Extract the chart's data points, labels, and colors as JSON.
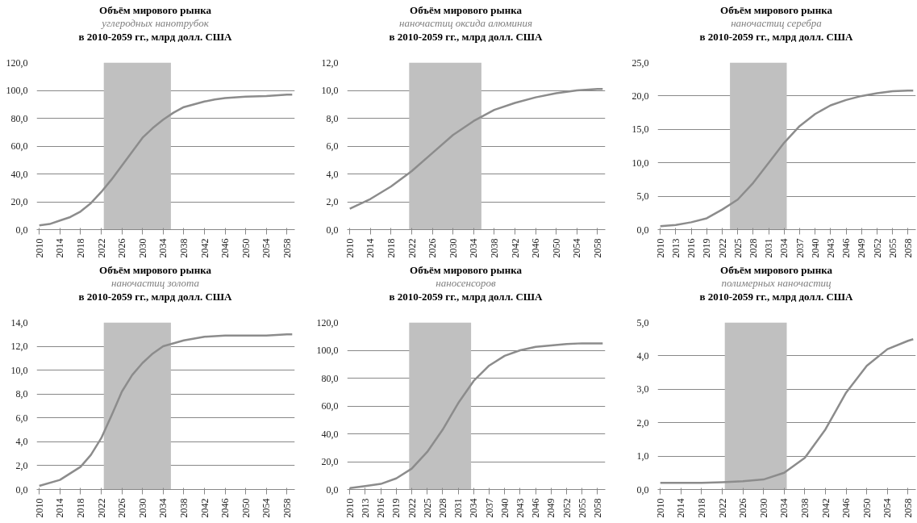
{
  "chart_data": [
    {
      "type": "line",
      "title": "Объём мирового рынка",
      "subtitle": "углеродных нанотрубок",
      "annotations": [
        "в 2010-2059 гг., млрд долл. США"
      ],
      "grid": "y",
      "xlim": [
        2009.5,
        2059.5
      ],
      "xticks": [
        2010,
        2014,
        2018,
        2022,
        2026,
        2030,
        2034,
        2038,
        2042,
        2046,
        2050,
        2054,
        2058
      ],
      "ylim": [
        0,
        120
      ],
      "yticks": [
        {
          "value": 0,
          "label": "0,0"
        },
        {
          "value": 20,
          "label": "20,0"
        },
        {
          "value": 40,
          "label": "40,0"
        },
        {
          "value": 60,
          "label": "60,0"
        },
        {
          "value": 80,
          "label": "80,0"
        },
        {
          "value": 100,
          "label": "100,0"
        },
        {
          "value": 120,
          "label": "120,0"
        }
      ],
      "bands": [
        {
          "axis": "x",
          "from": 2022.5,
          "to": 2035.5,
          "color": "#c0c0c0"
        }
      ],
      "series": [
        {
          "color": "#8c8c8c",
          "x": [
            2010,
            2012,
            2014,
            2016,
            2018,
            2020,
            2022,
            2024,
            2026,
            2028,
            2030,
            2032,
            2034,
            2036,
            2038,
            2040,
            2042,
            2044,
            2046,
            2050,
            2054,
            2058,
            2059
          ],
          "values": [
            3,
            4,
            6.5,
            9,
            13,
            19,
            27,
            36,
            46,
            56,
            66,
            73,
            79,
            84,
            88,
            90,
            92,
            93.5,
            94.5,
            95.5,
            96,
            97,
            97
          ]
        }
      ]
    },
    {
      "type": "line",
      "title": "Объём мирового рынка",
      "subtitle": "наночастиц оксида алюминия",
      "annotations": [
        "в 2010-2059 гг., млрд долл. США"
      ],
      "grid": "y",
      "xlim": [
        2009.5,
        2059.5
      ],
      "xticks": [
        2010,
        2014,
        2018,
        2022,
        2026,
        2030,
        2034,
        2038,
        2042,
        2046,
        2050,
        2054,
        2058
      ],
      "ylim": [
        0,
        12
      ],
      "yticks": [
        {
          "value": 0,
          "label": "0,0"
        },
        {
          "value": 2,
          "label": "2,0"
        },
        {
          "value": 4,
          "label": "4,0"
        },
        {
          "value": 6,
          "label": "6,0"
        },
        {
          "value": 8,
          "label": "8,0"
        },
        {
          "value": 10,
          "label": "10,0"
        },
        {
          "value": 12,
          "label": "12,0"
        }
      ],
      "bands": [
        {
          "axis": "x",
          "from": 2021.5,
          "to": 2035.5,
          "color": "#c0c0c0"
        }
      ],
      "series": [
        {
          "color": "#8c8c8c",
          "x": [
            2010,
            2014,
            2018,
            2022,
            2026,
            2030,
            2034,
            2038,
            2042,
            2046,
            2050,
            2054,
            2058,
            2059
          ],
          "values": [
            1.5,
            2.2,
            3.1,
            4.2,
            5.5,
            6.8,
            7.8,
            8.6,
            9.1,
            9.5,
            9.8,
            10.0,
            10.1,
            10.1
          ]
        }
      ]
    },
    {
      "type": "line",
      "title": "Объём мирового рынка",
      "subtitle": "наночастиц серебра",
      "annotations": [
        "в 2010-2059 гг., млрд долл. США"
      ],
      "grid": "y",
      "xlim": [
        2009.5,
        2059.5
      ],
      "xticks": [
        2010,
        2013,
        2016,
        2019,
        2022,
        2025,
        2028,
        2031,
        2034,
        2037,
        2040,
        2043,
        2046,
        2049,
        2052,
        2055,
        2058
      ],
      "ylim": [
        0,
        25
      ],
      "yticks": [
        {
          "value": 0,
          "label": "0,0"
        },
        {
          "value": 5,
          "label": "5,0"
        },
        {
          "value": 10,
          "label": "10,0"
        },
        {
          "value": 15,
          "label": "15,0"
        },
        {
          "value": 20,
          "label": "20,0"
        },
        {
          "value": 25,
          "label": "25,0"
        }
      ],
      "bands": [
        {
          "axis": "x",
          "from": 2023.5,
          "to": 2034.5,
          "color": "#c0c0c0"
        }
      ],
      "series": [
        {
          "color": "#8c8c8c",
          "x": [
            2010,
            2013,
            2016,
            2019,
            2022,
            2025,
            2028,
            2031,
            2034,
            2037,
            2040,
            2043,
            2046,
            2049,
            2052,
            2055,
            2058,
            2059
          ],
          "values": [
            0.5,
            0.7,
            1.1,
            1.7,
            3.0,
            4.5,
            7.0,
            10.0,
            13.0,
            15.5,
            17.3,
            18.6,
            19.4,
            20.0,
            20.4,
            20.7,
            20.8,
            20.8
          ]
        }
      ]
    },
    {
      "type": "line",
      "title": "Объём мирового рынка",
      "subtitle": "наночастиц золота",
      "annotations": [
        "в 2010-2059 гг., млрд долл. США"
      ],
      "grid": "y",
      "xlim": [
        2009.5,
        2059.5
      ],
      "xticks": [
        2010,
        2014,
        2018,
        2022,
        2026,
        2030,
        2034,
        2038,
        2042,
        2046,
        2050,
        2054,
        2058
      ],
      "ylim": [
        0,
        14
      ],
      "yticks": [
        {
          "value": 0,
          "label": "0,0"
        },
        {
          "value": 2,
          "label": "2,0"
        },
        {
          "value": 4,
          "label": "4,0"
        },
        {
          "value": 6,
          "label": "6,0"
        },
        {
          "value": 8,
          "label": "8,0"
        },
        {
          "value": 10,
          "label": "10,0"
        },
        {
          "value": 12,
          "label": "12,0"
        },
        {
          "value": 14,
          "label": "14,0"
        }
      ],
      "bands": [
        {
          "axis": "x",
          "from": 2022.5,
          "to": 2035.5,
          "color": "#c0c0c0"
        }
      ],
      "series": [
        {
          "color": "#8c8c8c",
          "x": [
            2010,
            2014,
            2018,
            2020,
            2022,
            2024,
            2026,
            2028,
            2030,
            2032,
            2034,
            2038,
            2042,
            2046,
            2050,
            2054,
            2058,
            2059
          ],
          "values": [
            0.3,
            0.8,
            1.9,
            2.9,
            4.3,
            6.2,
            8.2,
            9.6,
            10.6,
            11.4,
            12.0,
            12.5,
            12.8,
            12.9,
            12.9,
            12.9,
            13.0,
            13.0
          ]
        }
      ]
    },
    {
      "type": "line",
      "title": "Объём мирового рынка",
      "subtitle": "наносенсоров",
      "annotations": [
        "в 2010-2059 гг., млрд долл. США"
      ],
      "grid": "y",
      "xlim": [
        2009.5,
        2059.5
      ],
      "xticks": [
        2010,
        2013,
        2016,
        2019,
        2022,
        2025,
        2028,
        2031,
        2034,
        2037,
        2040,
        2043,
        2046,
        2049,
        2052,
        2055,
        2058
      ],
      "ylim": [
        0,
        120
      ],
      "yticks": [
        {
          "value": 0,
          "label": "0,0"
        },
        {
          "value": 20,
          "label": "20,0"
        },
        {
          "value": 40,
          "label": "40,0"
        },
        {
          "value": 60,
          "label": "60,0"
        },
        {
          "value": 80,
          "label": "80,0"
        },
        {
          "value": 100,
          "label": "100,0"
        },
        {
          "value": 120,
          "label": "120,0"
        }
      ],
      "bands": [
        {
          "axis": "x",
          "from": 2021.5,
          "to": 2033.5,
          "color": "#c0c0c0"
        }
      ],
      "series": [
        {
          "color": "#8c8c8c",
          "x": [
            2010,
            2013,
            2016,
            2019,
            2022,
            2025,
            2028,
            2031,
            2034,
            2037,
            2040,
            2043,
            2046,
            2049,
            2052,
            2055,
            2059
          ],
          "values": [
            1,
            2.5,
            4,
            8,
            15,
            27,
            43,
            62,
            78,
            89,
            96,
            100,
            102.5,
            103.5,
            104.5,
            105,
            105
          ]
        }
      ]
    },
    {
      "type": "line",
      "title": "Объём мирового рынка",
      "subtitle": "полимерных наночастиц",
      "annotations": [
        "в 2010-2059 гг., млрд долл. США"
      ],
      "grid": "y",
      "xlim": [
        2009.5,
        2059.5
      ],
      "xticks": [
        2010,
        2014,
        2018,
        2022,
        2026,
        2030,
        2034,
        2038,
        2042,
        2046,
        2050,
        2054,
        2058
      ],
      "ylim": [
        0,
        5
      ],
      "yticks": [
        {
          "value": 0,
          "label": "0,0"
        },
        {
          "value": 1,
          "label": "1,0"
        },
        {
          "value": 2,
          "label": "2,0"
        },
        {
          "value": 3,
          "label": "3,0"
        },
        {
          "value": 4,
          "label": "4,0"
        },
        {
          "value": 5,
          "label": "5,0"
        }
      ],
      "bands": [
        {
          "axis": "x",
          "from": 2022.5,
          "to": 2034.5,
          "color": "#c0c0c0"
        }
      ],
      "series": [
        {
          "color": "#8c8c8c",
          "x": [
            2010,
            2018,
            2022,
            2026,
            2030,
            2034,
            2038,
            2042,
            2046,
            2050,
            2054,
            2058,
            2059
          ],
          "values": [
            0.2,
            0.2,
            0.22,
            0.25,
            0.3,
            0.5,
            0.95,
            1.8,
            2.9,
            3.7,
            4.2,
            4.45,
            4.5
          ]
        }
      ]
    }
  ]
}
